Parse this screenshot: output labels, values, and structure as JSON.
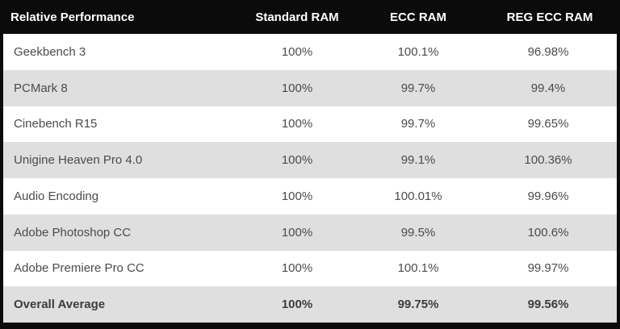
{
  "title": "Relative Performance",
  "colors": {
    "header_bg": "#0b0b0b",
    "header_text": "#ffffff",
    "border": "#0b0b0b",
    "row_bg": "#ffffff",
    "row_alt_bg": "#dfdfdf",
    "text": "#4b4b4b",
    "text_emphasis": "#3d3d3d"
  },
  "table": {
    "columns": [
      "Relative Performance",
      "Standard RAM",
      "ECC RAM",
      "REG ECC RAM"
    ],
    "rows": [
      {
        "cells": [
          "Geekbench 3",
          "100%",
          "100.1%",
          "96.98%"
        ],
        "emphasis": false
      },
      {
        "cells": [
          "PCMark 8",
          "100%",
          "99.7%",
          "99.4%"
        ],
        "emphasis": false
      },
      {
        "cells": [
          "Cinebench R15",
          "100%",
          "99.7%",
          "99.65%"
        ],
        "emphasis": false
      },
      {
        "cells": [
          "Unigine Heaven Pro 4.0",
          "100%",
          "99.1%",
          "100.36%"
        ],
        "emphasis": false
      },
      {
        "cells": [
          "Audio Encoding",
          "100%",
          "100.01%",
          "99.96%"
        ],
        "emphasis": false
      },
      {
        "cells": [
          "Adobe Photoshop CC",
          "100%",
          "99.5%",
          "100.6%"
        ],
        "emphasis": false
      },
      {
        "cells": [
          "Adobe Premiere Pro CC",
          "100%",
          "100.1%",
          "99.97%"
        ],
        "emphasis": false
      },
      {
        "cells": [
          "Overall Average",
          "100%",
          "99.75%",
          "99.56%"
        ],
        "emphasis": true
      }
    ]
  },
  "chart_data": {
    "type": "table",
    "title": "Relative Performance",
    "categories": [
      "Geekbench 3",
      "PCMark 8",
      "Cinebench R15",
      "Unigine Heaven Pro 4.0",
      "Audio Encoding",
      "Adobe Photoshop CC",
      "Adobe Premiere Pro CC",
      "Overall Average"
    ],
    "series": [
      {
        "name": "Standard RAM",
        "values": [
          100,
          100,
          100,
          100,
          100,
          100,
          100,
          100
        ]
      },
      {
        "name": "ECC RAM",
        "values": [
          100.1,
          99.7,
          99.7,
          99.1,
          100.01,
          99.5,
          100.1,
          99.75
        ]
      },
      {
        "name": "REG ECC RAM",
        "values": [
          96.98,
          99.4,
          99.65,
          100.36,
          99.96,
          100.6,
          99.97,
          99.56
        ]
      }
    ],
    "unit": "%"
  }
}
